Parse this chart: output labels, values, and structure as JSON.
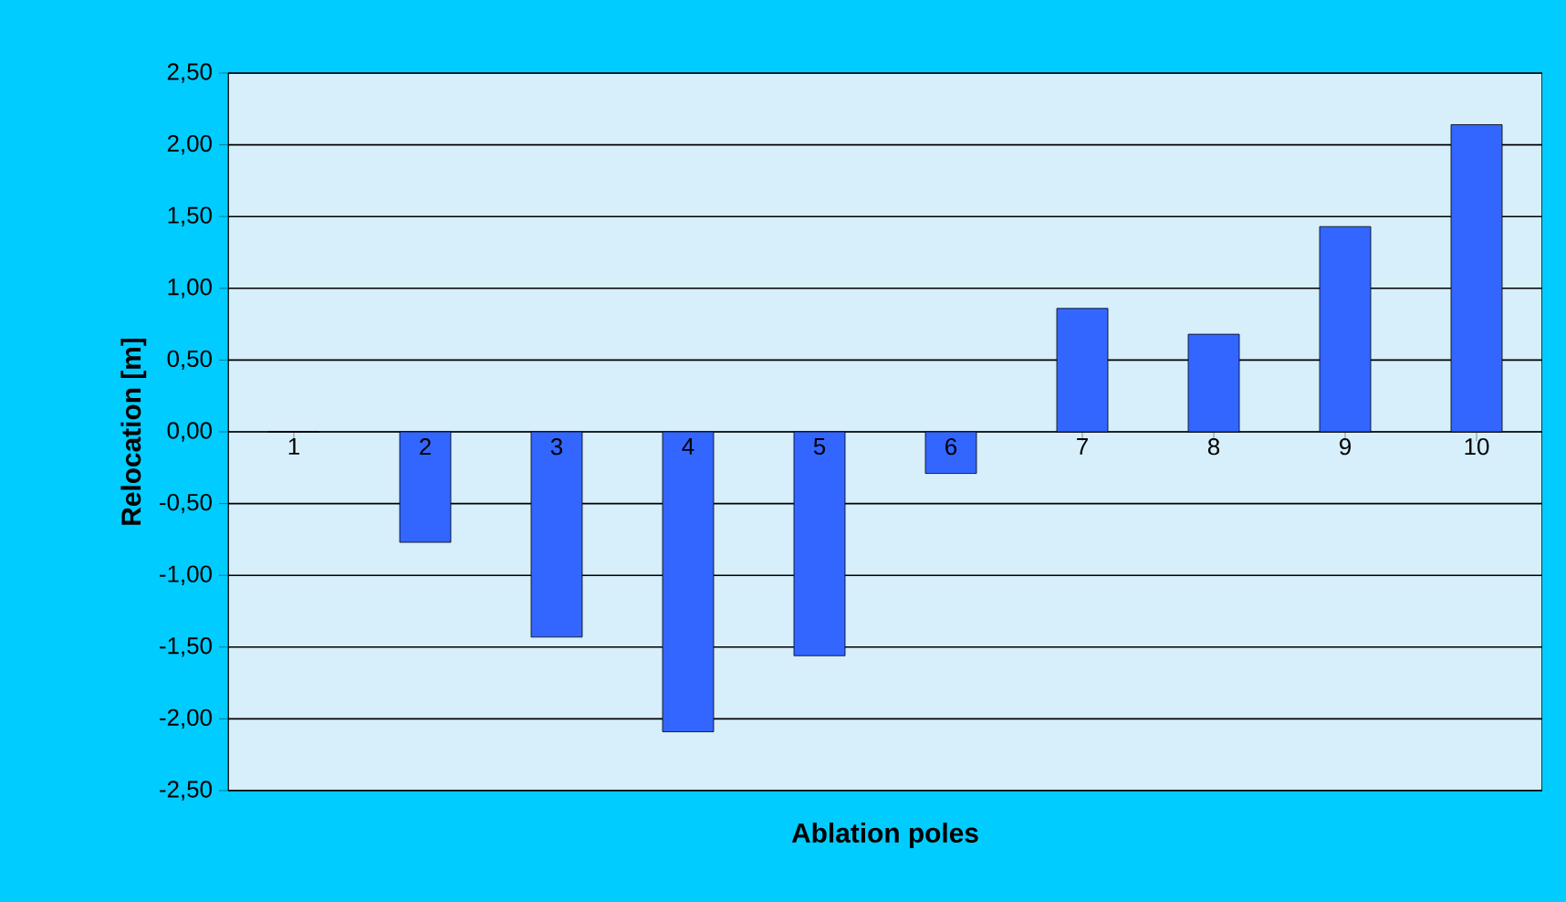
{
  "chart_data": {
    "type": "bar",
    "xlabel": "Ablation poles",
    "ylabel": "Relocation [m]",
    "categories": [
      "1",
      "2",
      "3",
      "4",
      "5",
      "6",
      "7",
      "8",
      "9",
      "10"
    ],
    "values": [
      0,
      -0.77,
      -1.43,
      -2.09,
      -1.56,
      -0.29,
      0.86,
      0.68,
      1.43,
      2.14
    ],
    "color": "#3366ff",
    "ylim": [
      -2.5,
      2.5
    ],
    "yticks": [
      {
        "value": -2.5,
        "label": "-2,50"
      },
      {
        "value": -2.0,
        "label": "-2,00"
      },
      {
        "value": -1.5,
        "label": "-1,50"
      },
      {
        "value": -1.0,
        "label": "-1,00"
      },
      {
        "value": -0.5,
        "label": "-0,50"
      },
      {
        "value": 0,
        "label": "0,00"
      },
      {
        "value": 0.5,
        "label": "0,50"
      },
      {
        "value": 1.0,
        "label": "1,00"
      },
      {
        "value": 1.5,
        "label": "1,50"
      },
      {
        "value": 2.0,
        "label": "2,00"
      },
      {
        "value": 2.5,
        "label": "2,50"
      }
    ],
    "grid": "y"
  }
}
